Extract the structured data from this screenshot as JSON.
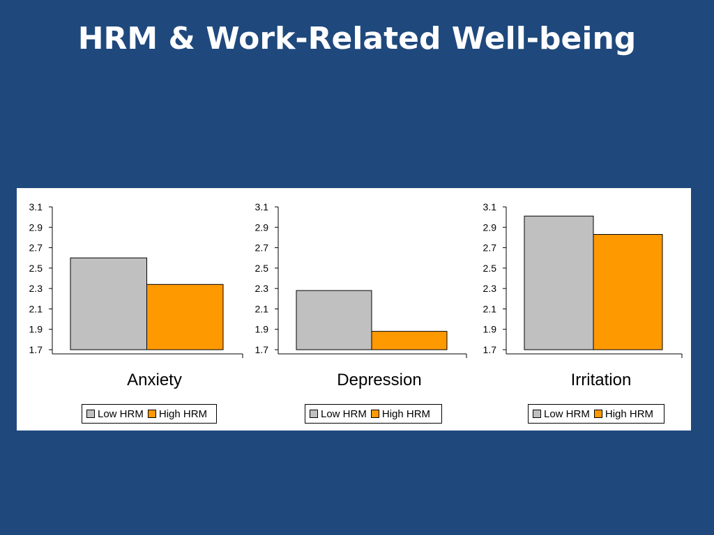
{
  "slide": {
    "title": "HRM & Work-Related Well-being"
  },
  "colors": {
    "background": "#1f497d",
    "low_hrm": "#c0c0c0",
    "high_hrm": "#ff9900"
  },
  "chart_data": [
    {
      "type": "bar",
      "categories": [
        "Anxiety"
      ],
      "series": [
        {
          "name": "Low HRM",
          "values": [
            2.6
          ]
        },
        {
          "name": "High HRM",
          "values": [
            2.34
          ]
        }
      ],
      "ylim": [
        1.7,
        3.1
      ],
      "yticks": [
        "3.1",
        "2.9",
        "2.7",
        "2.5",
        "2.3",
        "2.1",
        "1.9",
        "1.7"
      ],
      "legend": "bottom"
    },
    {
      "type": "bar",
      "categories": [
        "Depression"
      ],
      "series": [
        {
          "name": "Low HRM",
          "values": [
            2.28
          ]
        },
        {
          "name": "High HRM",
          "values": [
            1.88
          ]
        }
      ],
      "ylim": [
        1.7,
        3.1
      ],
      "yticks": [
        "3.1",
        "2.9",
        "2.7",
        "2.5",
        "2.3",
        "2.1",
        "1.9",
        "1.7"
      ],
      "legend": "bottom"
    },
    {
      "type": "bar",
      "categories": [
        "Irritation"
      ],
      "series": [
        {
          "name": "Low HRM",
          "values": [
            3.01
          ]
        },
        {
          "name": "High HRM",
          "values": [
            2.83
          ]
        }
      ],
      "ylim": [
        1.7,
        3.1
      ],
      "yticks": [
        "3.1",
        "2.9",
        "2.7",
        "2.5",
        "2.3",
        "2.1",
        "1.9",
        "1.7"
      ],
      "legend": "bottom"
    }
  ]
}
